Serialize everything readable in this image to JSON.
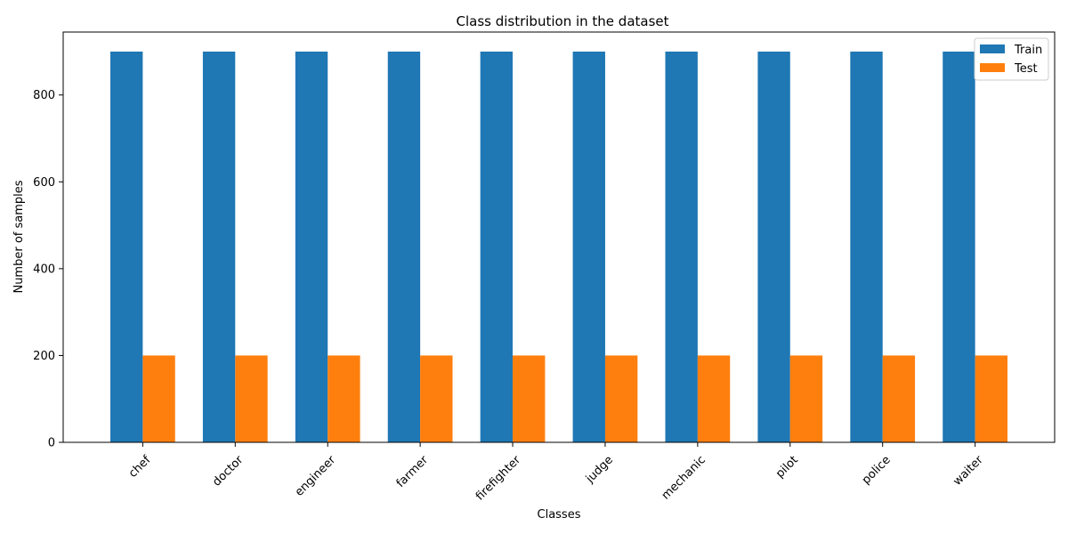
{
  "chart_data": {
    "type": "bar",
    "title": "Class distribution in the dataset",
    "xlabel": "Classes",
    "ylabel": "Number of samples",
    "categories": [
      "chef",
      "doctor",
      "engineer",
      "farmer",
      "firefighter",
      "judge",
      "mechanic",
      "pilot",
      "police",
      "waiter"
    ],
    "series": [
      {
        "name": "Train",
        "color": "#1f77b4",
        "values": [
          900,
          900,
          900,
          900,
          900,
          900,
          900,
          900,
          900,
          900
        ]
      },
      {
        "name": "Test",
        "color": "#ff7f0e",
        "values": [
          200,
          200,
          200,
          200,
          200,
          200,
          200,
          200,
          200,
          200
        ]
      }
    ],
    "ylim": [
      0,
      945
    ],
    "yticks": [
      0,
      200,
      400,
      600,
      800
    ],
    "grid": false,
    "legend_position": "top-right"
  }
}
